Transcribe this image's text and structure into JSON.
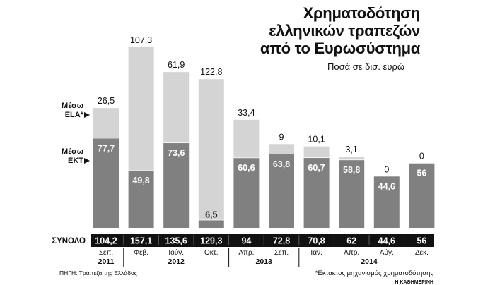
{
  "chart_data": {
    "type": "bar",
    "stacked": true,
    "title_lines": [
      "Χρηματοδότηση",
      "ελληνικών τραπεζών",
      "από το Ευρωσύστημα"
    ],
    "subtitle": "Ποσά σε δισ. ευρώ",
    "series": [
      {
        "name_lines": [
          "Μέσω",
          "ΕΚΤ"
        ],
        "color": "#808080",
        "values": [
          77.7,
          49.8,
          73.6,
          6.5,
          60.6,
          63.8,
          60.7,
          58.8,
          44.6,
          56
        ]
      },
      {
        "name_lines": [
          "Μέσω",
          "ELA*"
        ],
        "color": "#d4d4d4",
        "values": [
          26.5,
          107.3,
          61.9,
          122.8,
          33.4,
          9,
          10.1,
          3.1,
          0,
          0
        ]
      }
    ],
    "value_labels": {
      "ekt": [
        "77,7",
        "49,8",
        "73,6",
        "6,5",
        "60,6",
        "63,8",
        "60,7",
        "58,8",
        "44,6",
        "56"
      ],
      "ela": [
        "26,5",
        "107,3",
        "61,9",
        "122,8",
        "33,4",
        "9",
        "10,1",
        "3,1",
        "0",
        "0"
      ]
    },
    "totals_label": "ΣΥΝΟΛΟ",
    "totals": [
      "104,2",
      "157,1",
      "135,6",
      "129,3",
      "94",
      "72,8",
      "70,8",
      "62",
      "44,6",
      "56"
    ],
    "months": [
      "Σεπ.",
      "Φεβ.",
      "Ιούν.",
      "Οκτ.",
      "Απρ.",
      "Σεπ.",
      "Ιαν.",
      "Απρ.",
      "Αύγ.",
      "Δεκ."
    ],
    "years": [
      "2011",
      "2012",
      "2013",
      "2014"
    ],
    "year_groups": [
      {
        "label": "2011",
        "start": 0,
        "end": 0
      },
      {
        "label": "2012",
        "start": 1,
        "end": 3
      },
      {
        "label": "2013",
        "start": 4,
        "end": 5
      },
      {
        "label": "2014",
        "start": 6,
        "end": 9
      }
    ],
    "source": "ΠΗΓΗ: Τράπεζα της Ελλάδος",
    "footnote": "*Εκτακτος μηχανισμός χρηματοδότησης",
    "publisher": "Η ΚΑΘΗΜΕΡΙΝΗ",
    "colors": {
      "ekt": "#808080",
      "ela": "#d4d4d4",
      "totals_band": "#111111",
      "text": "#111111",
      "on_bar_text": "#ffffff"
    }
  }
}
